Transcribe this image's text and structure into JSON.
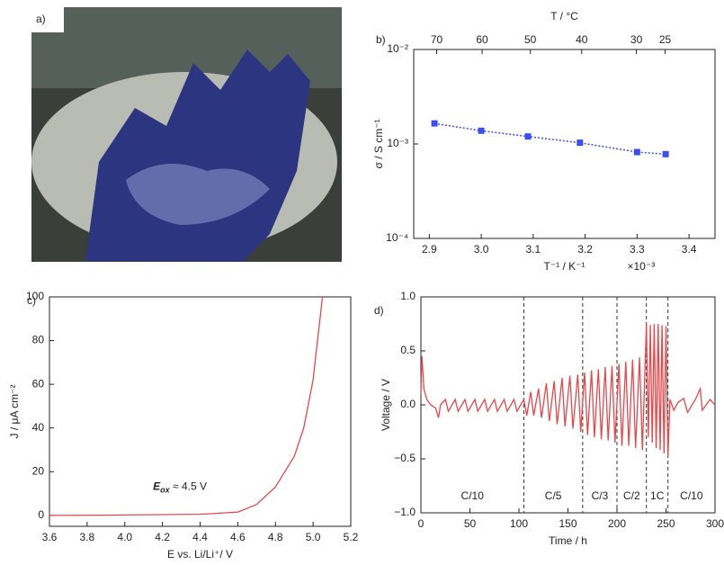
{
  "chart_data": [
    {
      "type": "image",
      "label": "a)"
    },
    {
      "type": "scatter-line",
      "label": "b)",
      "color": "#3b4ef2",
      "ylog": true,
      "x": [
        2.91,
        3.0,
        3.09,
        3.19,
        3.3,
        3.355
      ],
      "values": [
        0.00165,
        0.00138,
        0.0012,
        0.00103,
        0.00082,
        0.00078
      ],
      "xlim": [
        2.87,
        3.45
      ],
      "ylim": [
        0.0001,
        0.01
      ],
      "xticks": [
        2.9,
        {
          "value": 3,
          "label": "3.0"
        },
        3.1,
        3.2,
        3.3,
        3.4
      ],
      "yticks": [
        {
          "value": 0.0001,
          "label": "10⁻⁴"
        },
        {
          "value": 0.001,
          "label": "10⁻³"
        },
        {
          "value": 0.01,
          "label": "10⁻²"
        }
      ],
      "x2ticks": [
        70,
        60,
        50,
        40,
        30,
        25
      ],
      "xlabel": "T⁻¹ / K⁻¹",
      "xscale_label": "×10⁻³",
      "x2label": "T / °C",
      "ylabel": "σ / S cm⁻¹"
    },
    {
      "type": "line",
      "label": "c)",
      "color": "#e8474a",
      "x": [
        3.6,
        4.0,
        4.4,
        4.6,
        4.7,
        4.8,
        4.9,
        4.95,
        5.0,
        5.03,
        5.05
      ],
      "values": [
        0,
        0.2,
        0.5,
        1.5,
        5,
        13,
        27,
        40,
        62,
        85,
        100
      ],
      "xlim": [
        3.6,
        5.2
      ],
      "ylim": [
        -5,
        100
      ],
      "xticks": [
        3.6,
        3.8,
        {
          "value": 4,
          "label": "4.0"
        },
        4.2,
        4.4,
        4.6,
        4.8,
        {
          "value": 5,
          "label": "5.0"
        },
        5.2
      ],
      "yticks": [
        0,
        20,
        40,
        60,
        80,
        100
      ],
      "xlabel": "E vs. Li/Li⁺/ V",
      "ylabel": "J / μA cm⁻²",
      "annotation": {
        "main": "E",
        "sub": "ox",
        "tail": " ≈ 4.5 V"
      }
    },
    {
      "type": "line",
      "label": "d)",
      "color": "#e8474a",
      "x": [
        0,
        1,
        3,
        6,
        10,
        15,
        18,
        20,
        25,
        28,
        35,
        38,
        45,
        48,
        55,
        58,
        65,
        68,
        75,
        78,
        85,
        88,
        95,
        98,
        105,
        108,
        112,
        115,
        120,
        123,
        128,
        131,
        136,
        139,
        144,
        147,
        152,
        155,
        160,
        163,
        167,
        170,
        174,
        177,
        181,
        184,
        188,
        191,
        195,
        198,
        202,
        205,
        209,
        212,
        216,
        219,
        223,
        226,
        230,
        232,
        234,
        236,
        238,
        240,
        242,
        244,
        246,
        248,
        250,
        252,
        254,
        258,
        262,
        268,
        272,
        280,
        285,
        287,
        295,
        300
      ],
      "values": [
        0.1,
        0.45,
        0.15,
        0.05,
        0.0,
        -0.03,
        -0.12,
        0.0,
        0.05,
        -0.06,
        0.05,
        -0.06,
        0.05,
        -0.06,
        0.05,
        -0.06,
        0.05,
        -0.06,
        0.05,
        -0.06,
        0.05,
        -0.06,
        0.05,
        -0.06,
        0.05,
        -0.1,
        0.12,
        -0.1,
        0.15,
        -0.12,
        0.2,
        -0.15,
        0.22,
        -0.18,
        0.25,
        -0.2,
        0.27,
        -0.22,
        0.28,
        -0.25,
        0.3,
        -0.28,
        0.32,
        -0.3,
        0.33,
        -0.32,
        0.35,
        -0.33,
        0.36,
        -0.35,
        0.38,
        -0.38,
        0.4,
        -0.38,
        0.42,
        -0.4,
        0.44,
        -0.42,
        0.75,
        -0.3,
        0.74,
        -0.35,
        0.75,
        -0.4,
        0.75,
        -0.42,
        0.74,
        -0.45,
        0.73,
        -0.48,
        0.05,
        -0.05,
        0.02,
        0.06,
        -0.07,
        0.05,
        0.15,
        -0.05,
        0.05,
        0.0
      ],
      "xlim": [
        0,
        300
      ],
      "ylim": [
        -1,
        1
      ],
      "xticks": [
        0,
        50,
        100,
        150,
        200,
        250,
        300
      ],
      "yticks": [
        {
          "value": -1,
          "label": "−1.0"
        },
        {
          "value": -0.5,
          "label": "−0.5"
        },
        {
          "value": 0,
          "label": "0.0"
        },
        0.5,
        {
          "value": 1,
          "label": "1.0"
        }
      ],
      "vlines": [
        105,
        165,
        200,
        230,
        252
      ],
      "regions": [
        "C/10",
        "C/5",
        "C/3",
        "C/2",
        "1C",
        "C/10"
      ],
      "xlabel": "Time / h",
      "ylabel": "Voltage / V"
    }
  ]
}
